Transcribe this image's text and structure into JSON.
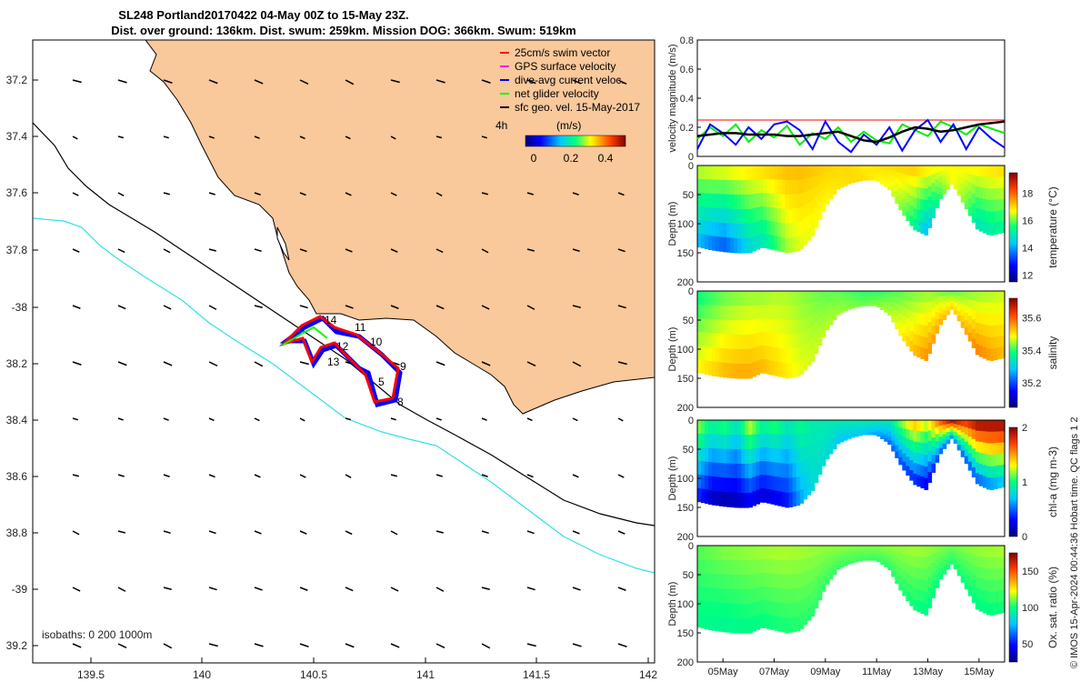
{
  "title": {
    "line1": "SL248 Portland20170422 04-May 00Z to 15-May 23Z.",
    "line2": "Dist. over ground: 136km. Dist. swum: 259km. Mission DOG: 366km. Swum: 519km"
  },
  "map": {
    "lon_ticks": [
      "139.5",
      "140",
      "140.5",
      "141",
      "141.5",
      "142"
    ],
    "lat_ticks": [
      "37.2",
      "37.4",
      "37.6",
      "37.8",
      "-38",
      "38.2",
      "38.4",
      "38.6",
      "38.8",
      "-39",
      "39.2"
    ],
    "isobaths_label": "isobaths: 0   200  1000m",
    "legend": [
      {
        "label": "25cm/s swim vector",
        "color": "#ff0000"
      },
      {
        "label": "GPS surface velocity",
        "color": "#ff00ff"
      },
      {
        "label": "dive-avg current veloc.",
        "color": "#0000ff"
      },
      {
        "label": "net glider velocity",
        "color": "#00ff00"
      },
      {
        "label": "sfc geo. vel. 15-May-2017",
        "color": "#000000"
      }
    ],
    "colorbar": {
      "interval_label": "4h",
      "unit": "(m/s)",
      "ticks": [
        "0",
        "0.2",
        "0.4"
      ]
    },
    "waypoints": [
      "14",
      "11",
      "12",
      "10",
      "13",
      "9",
      "5",
      "8"
    ],
    "colors": {
      "land": "#f9c89b",
      "isobath_200": "#000000",
      "isobath_1000": "#33e0e0"
    }
  },
  "chart_data": [
    {
      "type": "line",
      "name": "velocity",
      "ylabel": "velocity magnitude (m/s)",
      "ylim": [
        0,
        0.8
      ],
      "yticks": [
        "0",
        "0.2",
        "0.4",
        "0.6",
        "0.8"
      ],
      "x_days": [
        4.0,
        4.5,
        5.0,
        5.5,
        6.0,
        6.5,
        7.0,
        7.5,
        8.0,
        8.5,
        9.0,
        9.5,
        10.0,
        10.5,
        11.0,
        11.5,
        12.0,
        12.5,
        13.0,
        13.5,
        14.0,
        14.5,
        15.0,
        15.5,
        16.0
      ],
      "series": [
        {
          "color": "#ff0000",
          "values": [
            0.25,
            0.25,
            0.25,
            0.25,
            0.25,
            0.25,
            0.25,
            0.25,
            0.25,
            0.25,
            0.25,
            0.25,
            0.25,
            0.25,
            0.25,
            0.25,
            0.25,
            0.25,
            0.25,
            0.25,
            0.25,
            0.25,
            0.25,
            0.25,
            0.25
          ]
        },
        {
          "color": "#00ee00",
          "values": [
            0.12,
            0.2,
            0.14,
            0.22,
            0.1,
            0.18,
            0.13,
            0.21,
            0.08,
            0.16,
            0.12,
            0.2,
            0.1,
            0.17,
            0.11,
            0.09,
            0.22,
            0.18,
            0.14,
            0.24,
            0.2,
            0.15,
            0.22,
            0.19,
            0.16
          ]
        },
        {
          "color": "#0000ff",
          "values": [
            0.05,
            0.22,
            0.16,
            0.08,
            0.2,
            0.12,
            0.22,
            0.24,
            0.18,
            0.05,
            0.24,
            0.1,
            0.03,
            0.15,
            0.08,
            0.2,
            0.04,
            0.18,
            0.25,
            0.1,
            0.22,
            0.05,
            0.2,
            0.12,
            0.06
          ]
        },
        {
          "color": "#000000",
          "values": [
            0.14,
            0.15,
            0.16,
            0.16,
            0.15,
            0.15,
            0.15,
            0.14,
            0.14,
            0.15,
            0.16,
            0.17,
            0.14,
            0.11,
            0.1,
            0.13,
            0.17,
            0.2,
            0.19,
            0.17,
            0.18,
            0.2,
            0.22,
            0.23,
            0.24
          ]
        }
      ]
    },
    {
      "type": "heatmap",
      "name": "temperature",
      "clabel": "temperature (°C)",
      "cticks": [
        "12",
        "14",
        "16",
        "18"
      ],
      "clim": [
        11.5,
        19.5
      ],
      "ylabel": "Depth (m)",
      "yticks": [
        "0",
        "50",
        "100",
        "150",
        "200"
      ],
      "surface": [
        16.5,
        16.7,
        16.8,
        16.9,
        17.0,
        17.1,
        17.2,
        17.3,
        17.3,
        17.2,
        17.1,
        17.0,
        17.0,
        16.8,
        16.9,
        17.0,
        17.1,
        17.2,
        17.0,
        16.8,
        16.7,
        16.8,
        16.9,
        17.0,
        17.1
      ],
      "bottom": [
        14.0,
        13.5,
        13.2,
        13.8,
        14.5,
        14.8,
        15.5,
        16.2,
        16.5,
        16.6,
        16.7,
        16.9,
        17.0,
        17.0,
        16.8,
        16.6,
        16.0,
        15.2,
        14.0,
        15.5,
        16.8,
        16.0,
        14.8,
        15.0,
        15.2
      ]
    },
    {
      "type": "heatmap",
      "name": "salinity",
      "clabel": "salinity",
      "cticks": [
        "35.2",
        "35.4",
        "35.6"
      ],
      "clim": [
        35.05,
        35.72
      ],
      "ylabel": "Depth (m)",
      "yticks": [
        "0",
        "50",
        "100",
        "150",
        "200"
      ],
      "surface": [
        35.38,
        35.4,
        35.42,
        35.43,
        35.44,
        35.44,
        35.45,
        35.45,
        35.44,
        35.43,
        35.42,
        35.42,
        35.41,
        35.4,
        35.4,
        35.41,
        35.42,
        35.43,
        35.44,
        35.43,
        35.42,
        35.43,
        35.44,
        35.45,
        35.46
      ],
      "bottom": [
        35.5,
        35.52,
        35.54,
        35.55,
        35.55,
        35.54,
        35.52,
        35.5,
        35.48,
        35.47,
        35.46,
        35.45,
        35.44,
        35.43,
        35.44,
        35.46,
        35.5,
        35.54,
        35.57,
        35.55,
        35.52,
        35.55,
        35.58,
        35.56,
        35.54
      ]
    },
    {
      "type": "heatmap",
      "name": "chl-a",
      "clabel": "chl-a (mg m-3)",
      "cticks": [
        "0",
        "1",
        "2"
      ],
      "clim": [
        0,
        2
      ],
      "ylabel": "Depth (m)",
      "yticks": [
        "0",
        "50",
        "100",
        "150",
        "200"
      ],
      "surface": [
        1.2,
        1.0,
        1.1,
        0.9,
        1.3,
        1.0,
        1.1,
        0.9,
        1.0,
        0.9,
        0.9,
        0.9,
        0.9,
        0.9,
        0.9,
        0.9,
        1.2,
        1.5,
        1.3,
        1.7,
        2.0,
        1.8,
        2.0,
        2.0,
        2.0
      ],
      "bottom": [
        0.3,
        0.1,
        0.05,
        0.1,
        0.2,
        0.15,
        0.2,
        0.3,
        0.6,
        0.8,
        0.8,
        0.7,
        0.7,
        0.7,
        0.6,
        0.5,
        0.4,
        0.3,
        0.2,
        0.4,
        0.5,
        0.4,
        0.4,
        0.5,
        0.6
      ]
    },
    {
      "type": "heatmap",
      "name": "oxygen",
      "clabel": "Ox. sat. ratio (%)",
      "cticks": [
        "50",
        "100",
        "150"
      ],
      "clim": [
        25,
        175
      ],
      "ylabel": "Depth (m)",
      "yticks": [
        "0",
        "50",
        "100",
        "150",
        "200"
      ],
      "xticks": [
        "05May",
        "07May",
        "09May",
        "11May",
        "13May",
        "15May"
      ],
      "surface": [
        108,
        110,
        112,
        113,
        114,
        115,
        116,
        116,
        115,
        114,
        113,
        113,
        112,
        112,
        112,
        113,
        114,
        115,
        114,
        112,
        110,
        112,
        114,
        115,
        116
      ],
      "bottom": [
        98,
        97,
        96,
        97,
        98,
        99,
        100,
        101,
        102,
        103,
        104,
        104,
        105,
        105,
        104,
        103,
        102,
        100,
        98,
        100,
        102,
        100,
        98,
        99,
        100
      ]
    }
  ],
  "depth_profile_days": [
    4.0,
    4.5,
    5.0,
    5.5,
    6.0,
    6.5,
    7.0,
    7.5,
    8.0,
    8.5,
    9.0,
    9.5,
    10.0,
    10.5,
    11.0,
    11.5,
    12.0,
    12.5,
    13.0,
    13.5,
    14.0,
    14.5,
    15.0,
    15.5,
    16.0
  ],
  "depth_profile_max": [
    140,
    145,
    148,
    150,
    150,
    140,
    145,
    150,
    145,
    120,
    70,
    40,
    30,
    25,
    25,
    40,
    80,
    110,
    120,
    60,
    30,
    70,
    110,
    120,
    115
  ],
  "credit": "© IMOS 15-Apr-2024 00:44:36 Hobart time. QC flags 1  2"
}
